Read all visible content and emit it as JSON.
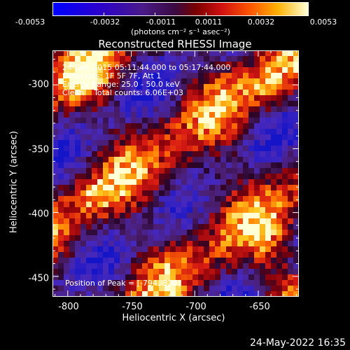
{
  "colorbar": {
    "tick_labels": [
      "-0.0053",
      "-0.0032",
      "-0.0011",
      "0.0011",
      "0.0032",
      "0.0053"
    ],
    "units_label": "(photons cm⁻² s⁻¹ asec⁻²)"
  },
  "chart_data": {
    "type": "heatmap",
    "title": "Reconstructed RHESSI Image",
    "xlabel": "Heliocentric X (arcsec)",
    "ylabel": "Heliocentric Y (arcsec)",
    "xlim": [
      -812,
      -618
    ],
    "ylim": [
      -466,
      -273
    ],
    "x_ticks": [
      "-800",
      "-750",
      "-700",
      "-650"
    ],
    "x_tick_values": [
      -800,
      -750,
      -700,
      -650
    ],
    "y_ticks": [
      "-300",
      "-350",
      "-400",
      "-450"
    ],
    "y_tick_values": [
      -300,
      -350,
      -400,
      -450
    ],
    "color_range": [
      -0.0053,
      0.0053
    ],
    "annotations": [
      "24-Dec-2015 05:11:44.000 to 05:17:44.000",
      "Detectors: 1F 5F 7F, Att 1",
      "Energy Range: 25.0 - 50.0 keV",
      "Clean    Total counts: 6.06E+03"
    ],
    "peak_label": "Position of Peak = [-794,-320]"
  },
  "footer": {
    "date": "24-May-2022 16:35"
  }
}
